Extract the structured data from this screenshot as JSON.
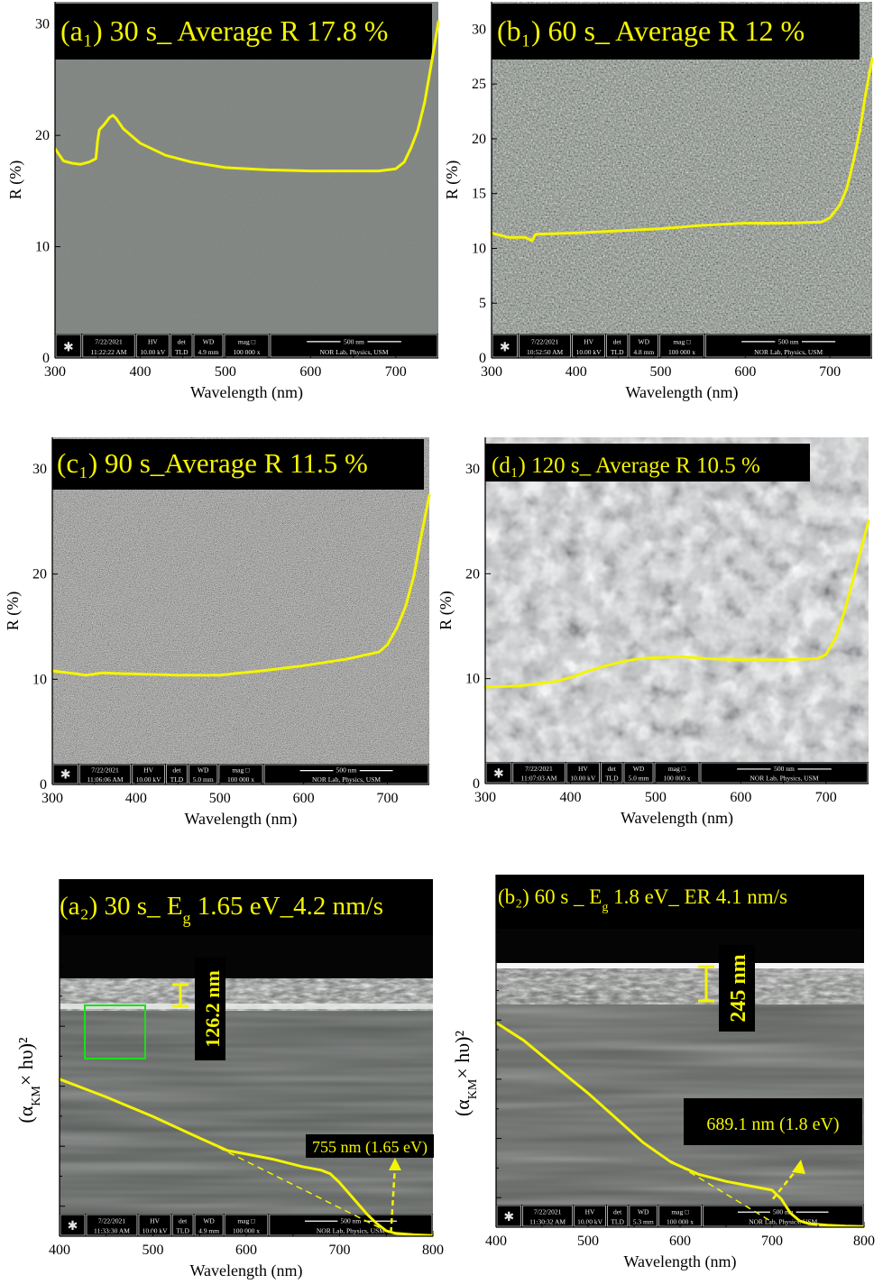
{
  "panels": [
    {
      "id": "a1",
      "title": "(a₁) 30 s_ Average R 17.8 %",
      "texture": "smooth",
      "sem": {
        "date": "7/22/2021",
        "time": "11:22:22 AM",
        "hv": "10.00 kV",
        "det": "TLD",
        "wd": "4.9 mm",
        "mag": "100 000 x",
        "scale": "500 nm",
        "lab": "NOR Lab, Physics, USM"
      }
    },
    {
      "id": "b1",
      "title": "(b₁) 60 s_ Average R 12 %",
      "texture": "grainy",
      "sem": {
        "date": "7/22/2021",
        "time": "10:52:50 AM",
        "hv": "10.00 kV",
        "det": "TLD",
        "wd": "4.8 mm",
        "mag": "100 000 x",
        "scale": "500 nm",
        "lab": "NOR Lab, Physics, USM"
      }
    },
    {
      "id": "c1",
      "title": "(c₁) 90 s_Average R 11.5 %",
      "texture": "speckled",
      "sem": {
        "date": "7/22/2021",
        "time": "11:06:06 AM",
        "hv": "10.00 kV",
        "det": "TLD",
        "wd": "5.0 mm",
        "mag": "100 000 x",
        "scale": "500 nm",
        "lab": "NOR Lab, Physics, USM"
      }
    },
    {
      "id": "d1",
      "title": "(d₁) 120 s_ Average R 10.5 %",
      "texture": "blotchy",
      "sem": {
        "date": "7/22/2021",
        "time": "11:07:03 AM",
        "hv": "10.00 kV",
        "det": "TLD",
        "wd": "5.0 mm",
        "mag": "100 000 x",
        "scale": "500 nm",
        "lab": "NOR Lab, Physics, USM"
      }
    },
    {
      "id": "a2",
      "title": "(a₂) 30 s_ E_g 1.65 eV_4.2 nm/s",
      "thickness": "126.2 nm",
      "intercept_label": "755 nm (1.65 eV)",
      "sem": {
        "date": "7/22/2021",
        "time": "11:33:30 AM",
        "hv": "10.00 kV",
        "det": "TLD",
        "wd": "4.9 mm",
        "mag": "100 000 x",
        "scale": "500 nm",
        "lab": "NOR Lab, Physics, USM"
      }
    },
    {
      "id": "b2",
      "title": "(b₂) 60 s _ E_g 1.8 eV_ ER 4.1 nm/s",
      "thickness": "245 nm",
      "intercept_label": "689.1 nm (1.8 eV)",
      "sem": {
        "date": "7/22/2021",
        "time": "11:30:32 AM",
        "hv": "10.00 kV",
        "det": "TLD",
        "wd": "5.3 mm",
        "mag": "100 000 x",
        "scale": "500 nm",
        "lab": "NOR Lab, Physics, USM"
      }
    }
  ],
  "chart_data": [
    {
      "type": "line",
      "id": "a1",
      "xlabel": "Wavelength (nm)",
      "ylabel": "R (%)",
      "xlim": [
        300,
        750
      ],
      "ylim": [
        0,
        32
      ],
      "xticks": [
        300,
        400,
        500,
        600,
        700
      ],
      "yticks": [
        0,
        10,
        20,
        30
      ],
      "color": "#f4f400",
      "x": [
        300,
        310,
        320,
        330,
        340,
        348,
        350,
        352,
        358,
        364,
        368,
        372,
        380,
        400,
        430,
        460,
        500,
        550,
        600,
        640,
        680,
        700,
        710,
        718,
        726,
        734,
        742,
        750
      ],
      "y": [
        18.8,
        17.7,
        17.5,
        17.4,
        17.6,
        17.9,
        19.5,
        20.5,
        21.0,
        21.6,
        21.8,
        21.5,
        20.6,
        19.3,
        18.2,
        17.6,
        17.1,
        16.9,
        16.8,
        16.8,
        16.8,
        17.0,
        17.6,
        18.9,
        20.5,
        23.0,
        26.5,
        30.2
      ]
    },
    {
      "type": "line",
      "id": "b1",
      "xlabel": "Wavelength (nm)",
      "ylabel": "R (%)",
      "xlim": [
        300,
        750
      ],
      "ylim": [
        0,
        32.5
      ],
      "xticks": [
        300,
        400,
        500,
        600,
        700
      ],
      "yticks": [
        0,
        5,
        10,
        15,
        20,
        25,
        30
      ],
      "color": "#f4f400",
      "x": [
        300,
        320,
        340,
        348,
        352,
        400,
        450,
        500,
        550,
        600,
        650,
        690,
        700,
        712,
        720,
        728,
        736,
        742,
        750
      ],
      "y": [
        11.4,
        11.0,
        11.0,
        10.7,
        11.3,
        11.4,
        11.6,
        11.8,
        12.1,
        12.3,
        12.3,
        12.4,
        12.8,
        14.0,
        15.5,
        18.0,
        21.0,
        24.0,
        27.3
      ]
    },
    {
      "type": "line",
      "id": "c1",
      "xlabel": "Wavelength (nm)",
      "ylabel": "R (%)",
      "xlim": [
        300,
        750
      ],
      "ylim": [
        0,
        33
      ],
      "xticks": [
        300,
        400,
        500,
        600,
        700
      ],
      "yticks": [
        0,
        10,
        20,
        30
      ],
      "color": "#f4f400",
      "x": [
        300,
        320,
        340,
        360,
        400,
        450,
        500,
        550,
        600,
        650,
        690,
        700,
        712,
        722,
        732,
        740,
        750
      ],
      "y": [
        10.8,
        10.6,
        10.4,
        10.6,
        10.5,
        10.4,
        10.4,
        10.8,
        11.3,
        11.9,
        12.6,
        13.3,
        15.0,
        17.0,
        20.0,
        23.5,
        27.5
      ]
    },
    {
      "type": "line",
      "id": "d1",
      "xlabel": "Wavelength (nm)",
      "ylabel": "R (%)",
      "xlim": [
        300,
        750
      ],
      "ylim": [
        0,
        33
      ],
      "xticks": [
        300,
        400,
        500,
        600,
        700
      ],
      "yticks": [
        0,
        10,
        20,
        30
      ],
      "color": "#f4f400",
      "x": [
        300,
        340,
        380,
        400,
        420,
        440,
        460,
        480,
        500,
        530,
        560,
        600,
        650,
        690,
        700,
        712,
        722,
        732,
        740,
        750
      ],
      "y": [
        9.2,
        9.3,
        9.7,
        10.1,
        10.7,
        11.2,
        11.6,
        11.9,
        12.0,
        12.1,
        11.9,
        11.8,
        11.8,
        11.9,
        12.3,
        14.0,
        16.5,
        19.5,
        22.0,
        25.0
      ]
    },
    {
      "type": "line",
      "id": "a2",
      "xlabel": "Wavelength (nm)",
      "ylabel": "(α_KM× hυ)²",
      "xlim": [
        400,
        800
      ],
      "ylim": [
        0,
        100
      ],
      "xticks": [
        400,
        500,
        600,
        700,
        800
      ],
      "yticks": [],
      "color": "#f4f400",
      "x": [
        400,
        450,
        500,
        550,
        580,
        600,
        630,
        660,
        680,
        690,
        700,
        710,
        720,
        730,
        740,
        750,
        760,
        780,
        800
      ],
      "y": [
        44,
        39,
        33.5,
        27.5,
        24,
        23,
        21.5,
        19.5,
        18.5,
        17.5,
        15,
        12,
        9,
        6,
        3.5,
        1.5,
        0.8,
        0.4,
        0.2
      ],
      "tangent": {
        "x": [
          550,
          755
        ],
        "y": [
          27.5,
          0.8
        ]
      },
      "intercept_x": 755
    },
    {
      "type": "line",
      "id": "b2",
      "xlabel": "Wavelength (nm)",
      "ylabel": "(α_KM× hυ)²",
      "xlim": [
        400,
        800
      ],
      "ylim": [
        0,
        100
      ],
      "xticks": [
        400,
        500,
        600,
        700,
        800
      ],
      "yticks": [],
      "color": "#f4f400",
      "x": [
        400,
        430,
        460,
        500,
        530,
        560,
        590,
        620,
        650,
        680,
        700,
        710,
        720,
        730,
        740,
        760,
        780,
        800
      ],
      "y": [
        58,
        53,
        46.5,
        38,
        31,
        24,
        18.5,
        15,
        13,
        11.5,
        10.5,
        8,
        4,
        1.8,
        1.0,
        0.6,
        0.3,
        0.2
      ],
      "tangent": {
        "x": [
          570,
          700
        ],
        "y": [
          22,
          1.5
        ]
      },
      "intercept_x": 689.1
    }
  ]
}
